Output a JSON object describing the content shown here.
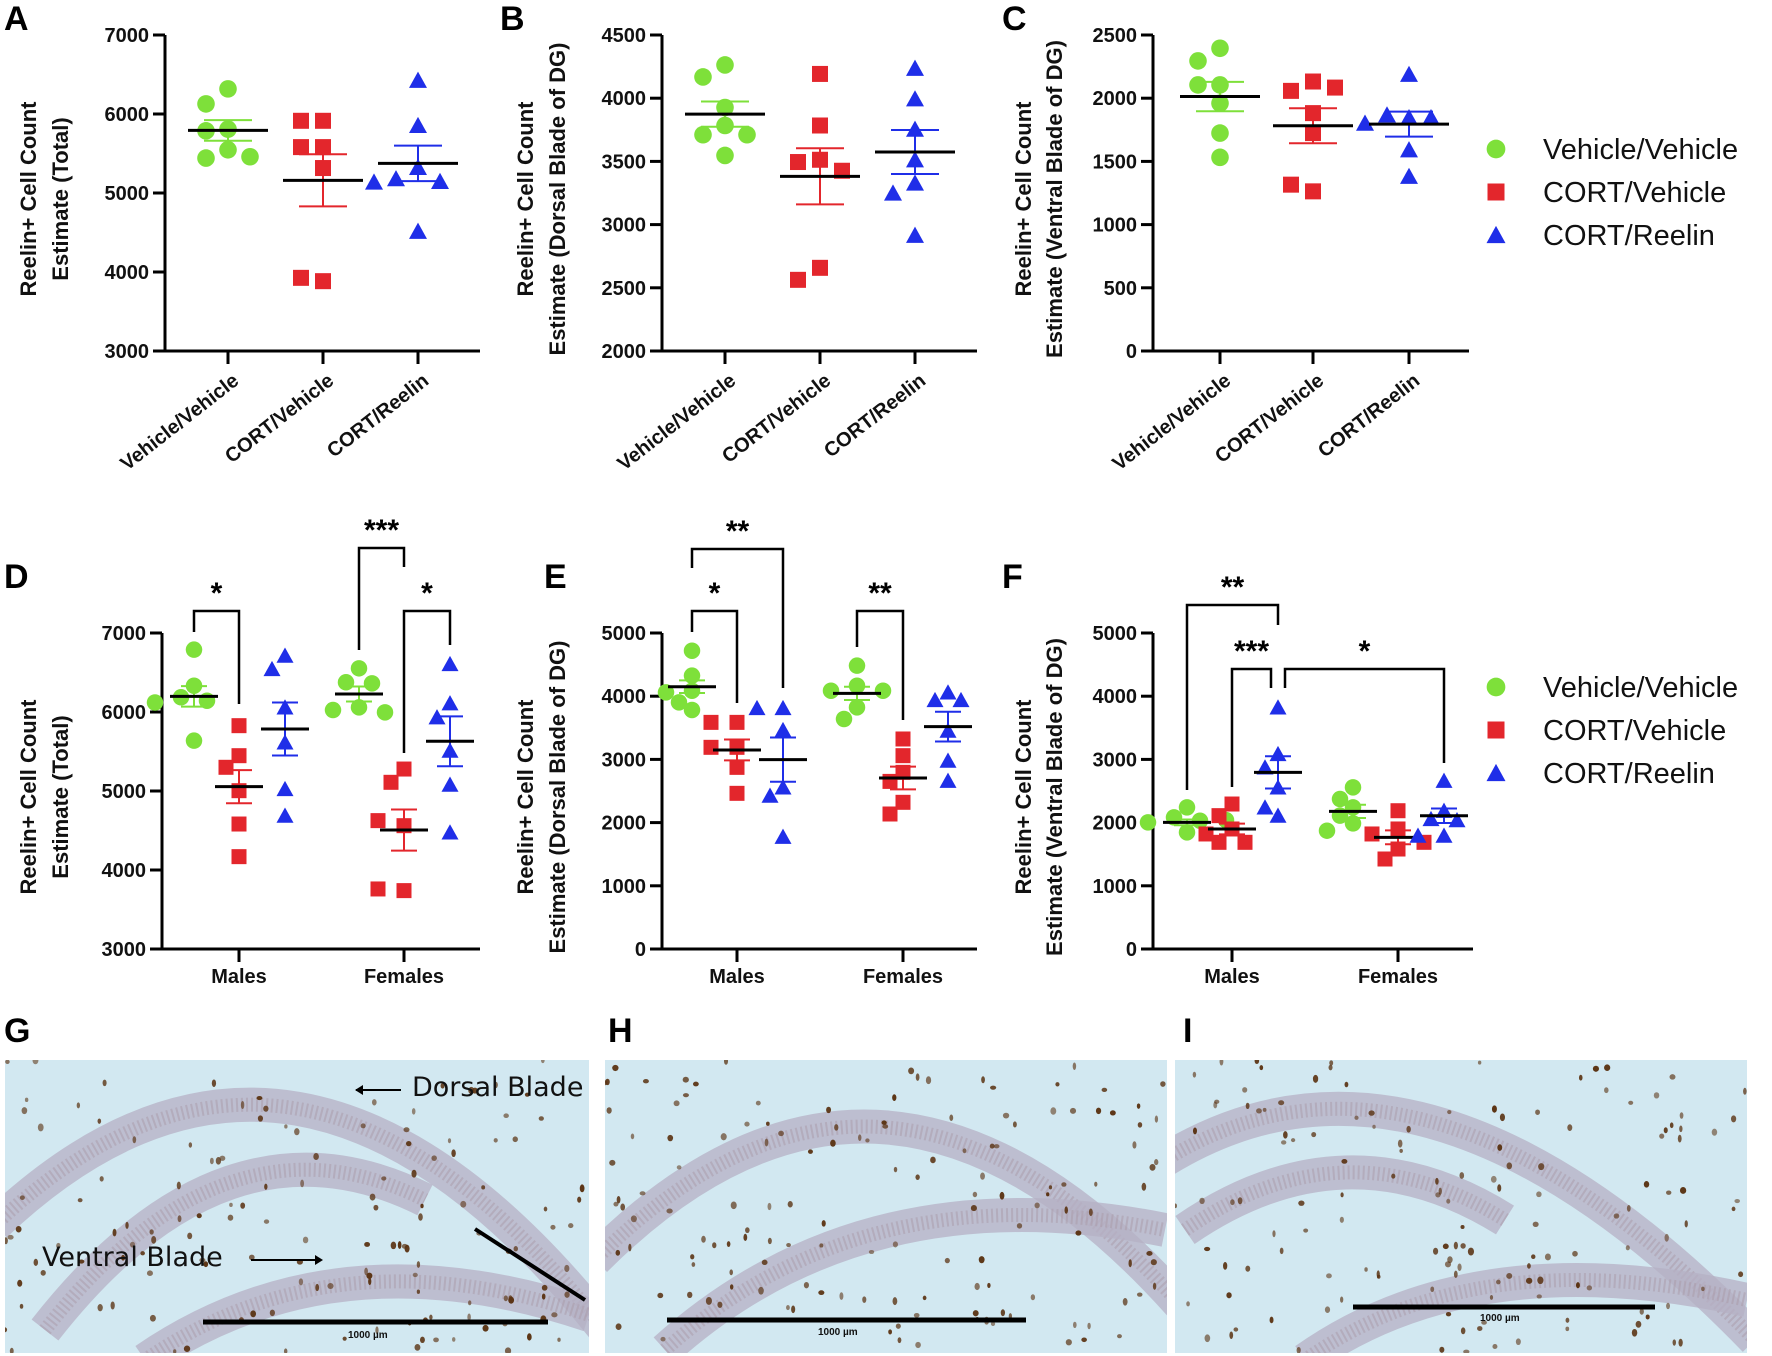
{
  "legend": [
    {
      "name": "Vehicle/Vehicle",
      "color": "#7ee03a",
      "marker": "circle"
    },
    {
      "name": "CORT/Vehicle",
      "color": "#e3262c",
      "marker": "square"
    },
    {
      "name": "CORT/Reelin",
      "color": "#1f2ee8",
      "marker": "triangle"
    }
  ],
  "chart_data": [
    {
      "id": "A",
      "label": "A",
      "type": "scatter",
      "ylabel": [
        "Reelin+ Cell Count",
        "Estimate (Total)"
      ],
      "ylim": [
        3000,
        7000
      ],
      "yticks": [
        3000,
        4000,
        5000,
        6000,
        7000
      ],
      "categories": [
        "Vehicle/Vehicle",
        "CORT/Vehicle",
        "CORT/Reelin"
      ],
      "groups": [
        {
          "series": 0,
          "values": [
            6318,
            6128,
            5808,
            5787,
            5547,
            5442,
            5459
          ],
          "mean": 5792,
          "sem": 130
        },
        {
          "series": 1,
          "values": [
            5914,
            5914,
            5581,
            5581,
            5316,
            3884,
            3926
          ],
          "mean": 5160,
          "sem": 330
        },
        {
          "series": 2,
          "values": [
            6427,
            5855,
            5324,
            5181,
            5147,
            5139,
            4516
          ],
          "mean": 5375,
          "sem": 225
        }
      ],
      "significance": []
    },
    {
      "id": "B",
      "label": "B",
      "type": "scatter",
      "ylabel": [
        "Reelin+ Cell Count",
        "Estimate (Dorsal Blade of DG)"
      ],
      "ylim": [
        2000,
        4500
      ],
      "yticks": [
        2000,
        2500,
        3000,
        3500,
        4000,
        4500
      ],
      "categories": [
        "Vehicle/Vehicle",
        "CORT/Vehicle",
        "CORT/Reelin"
      ],
      "groups": [
        {
          "series": 0,
          "values": [
            4263,
            4168,
            3926,
            3784,
            3711,
            3711,
            3547
          ],
          "mean": 3874,
          "sem": 100
        },
        {
          "series": 1,
          "values": [
            4192,
            3784,
            3513,
            3495,
            3426,
            2658,
            2563
          ],
          "mean": 3382,
          "sem": 222
        },
        {
          "series": 2,
          "values": [
            4237,
            3995,
            3755,
            3513,
            3329,
            3250,
            2916
          ],
          "mean": 3574,
          "sem": 174
        }
      ],
      "significance": []
    },
    {
      "id": "C",
      "label": "C",
      "type": "scatter",
      "ylabel": [
        "Reelin+ Cell Count",
        "Estimate (Ventral Blade of DG)"
      ],
      "ylim": [
        0,
        2500
      ],
      "yticks": [
        0,
        500,
        1000,
        1500,
        2000,
        2500
      ],
      "categories": [
        "Vehicle/Vehicle",
        "CORT/Vehicle",
        "CORT/Reelin"
      ],
      "groups": [
        {
          "series": 0,
          "values": [
            2395,
            2295,
            2105,
            2105,
            1960,
            1724,
            1532
          ],
          "mean": 2013,
          "sem": 116
        },
        {
          "series": 1,
          "values": [
            2132,
            2058,
            2084,
            1882,
            1724,
            1263,
            1316
          ],
          "mean": 1782,
          "sem": 138
        },
        {
          "series": 2,
          "values": [
            2189,
            1847,
            1868,
            1847,
            1803,
            1592,
            1382
          ],
          "mean": 1795,
          "sem": 99
        }
      ],
      "significance": []
    },
    {
      "id": "D",
      "label": "D",
      "type": "scatter",
      "ylabel": [
        "Reelin+ Cell Count",
        "Estimate (Total)"
      ],
      "ylim": [
        3000,
        7000
      ],
      "yticks": [
        3000,
        4000,
        5000,
        6000,
        7000
      ],
      "categories": [
        "Males",
        "Females"
      ],
      "groups": [
        {
          "category": "Males",
          "series": 0,
          "values": [
            6789,
            6333,
            6186,
            6143,
            6120,
            5637
          ],
          "mean": 6198,
          "sem": 130
        },
        {
          "category": "Males",
          "series": 1,
          "values": [
            5827,
            5447,
            5300,
            5004,
            4582,
            4169
          ],
          "mean": 5055,
          "sem": 210
        },
        {
          "category": "Males",
          "series": 2,
          "values": [
            6713,
            6544,
            6059,
            5616,
            5025,
            4688
          ],
          "mean": 5785,
          "sem": 335
        },
        {
          "category": "Females",
          "series": 0,
          "values": [
            6553,
            6376,
            6363,
            6059,
            6025,
            5996
          ],
          "mean": 6228,
          "sem": 95
        },
        {
          "category": "Females",
          "series": 1,
          "values": [
            5278,
            5110,
            4561,
            4625,
            3739,
            3760
          ],
          "mean": 4506,
          "sem": 260
        },
        {
          "category": "Females",
          "series": 2,
          "values": [
            6608,
            6110,
            5933,
            5511,
            5080,
            4477
          ],
          "mean": 5629,
          "sem": 315
        }
      ],
      "significance": [
        {
          "groups": [
            0,
            1
          ],
          "label": "*"
        },
        {
          "groups": [
            3,
            4
          ],
          "label": "***"
        },
        {
          "groups": [
            4,
            5
          ],
          "label": "*"
        }
      ]
    },
    {
      "id": "E",
      "label": "E",
      "type": "scatter",
      "ylabel": [
        "Reelin+ Cell Count",
        "Estimate (Dorsal Blade of DG)"
      ],
      "ylim": [
        0,
        5000
      ],
      "yticks": [
        0,
        1000,
        2000,
        3000,
        4000,
        5000
      ],
      "categories": [
        "Males",
        "Females"
      ],
      "groups": [
        {
          "category": "Males",
          "series": 0,
          "values": [
            4720,
            4325,
            4087,
            4061,
            3903,
            3782
          ],
          "mean": 4150,
          "sem": 100
        },
        {
          "category": "Males",
          "series": 1,
          "values": [
            3586,
            3586,
            3191,
            3191,
            2874,
            2463
          ],
          "mean": 3149,
          "sem": 165
        },
        {
          "category": "Males",
          "series": 2,
          "values": [
            3813,
            3813,
            3465,
            2558,
            2426,
            1777
          ],
          "mean": 2996,
          "sem": 350
        },
        {
          "category": "Females",
          "series": 0,
          "values": [
            4483,
            4166,
            4087,
            4087,
            3824,
            3639
          ],
          "mean": 4045,
          "sem": 105
        },
        {
          "category": "Females",
          "series": 1,
          "values": [
            3323,
            3059,
            2795,
            2652,
            2321,
            2136
          ],
          "mean": 2706,
          "sem": 180
        },
        {
          "category": "Females",
          "series": 2,
          "values": [
            4061,
            3940,
            3940,
            3455,
            2980,
            2663
          ],
          "mean": 3518,
          "sem": 235
        }
      ],
      "significance": [
        {
          "groups": [
            0,
            2
          ],
          "label": "**"
        },
        {
          "groups": [
            0,
            1
          ],
          "label": "*"
        },
        {
          "groups": [
            3,
            4
          ],
          "label": "**"
        }
      ]
    },
    {
      "id": "F",
      "label": "F",
      "type": "scatter",
      "ylabel": [
        "Reelin+ Cell Count",
        "Estimate (Ventral Blade of DG)"
      ],
      "ylim": [
        0,
        5000
      ],
      "yticks": [
        0,
        1000,
        2000,
        3000,
        4000,
        5000
      ],
      "categories": [
        "Males",
        "Females"
      ],
      "groups": [
        {
          "category": "Males",
          "series": 0,
          "values": [
            2241,
            2083,
            2030,
            2004,
            1846,
            2040
          ],
          "mean": 2004,
          "sem": 45
        },
        {
          "category": "Males",
          "series": 1,
          "values": [
            2294,
            2110,
            1899,
            1820,
            1688,
            1688
          ],
          "mean": 1899,
          "sem": 85
        },
        {
          "category": "Males",
          "series": 2,
          "values": [
            3824,
            3085,
            2874,
            2558,
            2110,
            2241
          ],
          "mean": 2795,
          "sem": 255
        },
        {
          "category": "Females",
          "series": 0,
          "values": [
            2558,
            2373,
            2241,
            2110,
            1988,
            1872
          ],
          "mean": 2178,
          "sem": 105
        },
        {
          "category": "Females",
          "series": 1,
          "values": [
            2188,
            1899,
            1820,
            1582,
            1424,
            1688
          ],
          "mean": 1767,
          "sem": 110
        },
        {
          "category": "Females",
          "series": 2,
          "values": [
            2663,
            2188,
            2057,
            2040,
            1793,
            1793
          ],
          "mean": 2109,
          "sem": 115
        }
      ],
      "significance": [
        {
          "groups": [
            0,
            2
          ],
          "label": "**"
        },
        {
          "groups": [
            1,
            2
          ],
          "label": "***"
        },
        {
          "groups": [
            2,
            5
          ],
          "label": "*"
        }
      ]
    }
  ],
  "micrographs": [
    {
      "label": "G",
      "scale_bar": "1000 µm",
      "annotations": [
        "Dorsal Blade",
        "Ventral Blade"
      ]
    },
    {
      "label": "H",
      "scale_bar": "1000 µm"
    },
    {
      "label": "I",
      "scale_bar": "1000 µm"
    }
  ]
}
